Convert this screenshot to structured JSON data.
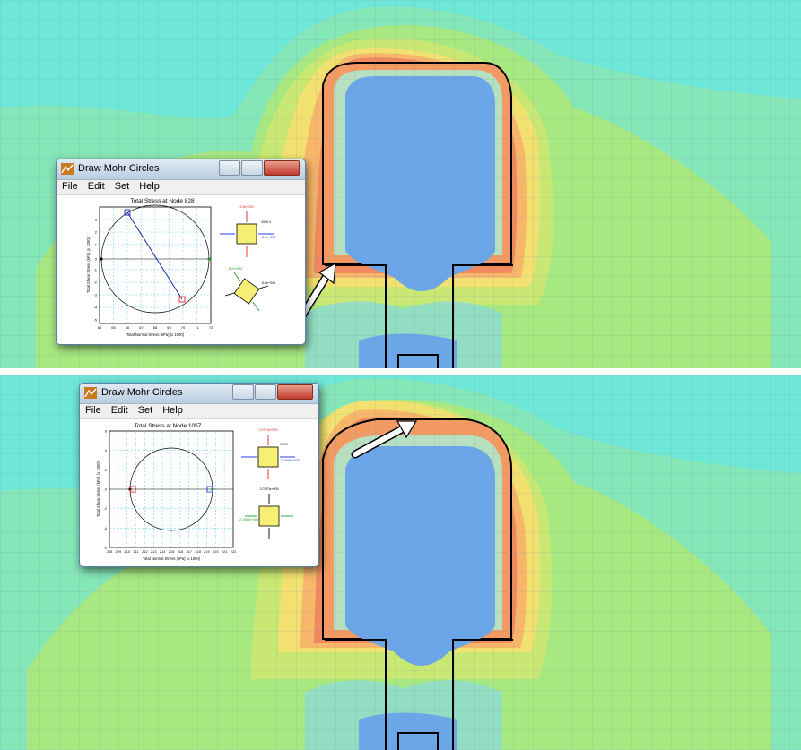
{
  "top": {
    "window": {
      "title": "Draw Mohr Circles",
      "menu": [
        "File",
        "Edit",
        "Set",
        "Help"
      ],
      "plot_title": "Total Stress at Node 828",
      "xlabel": "Total Normal Stress (kPa) (x 1000)",
      "ylabel": "Total Shear Stress (kPa) (x 1000)",
      "xticks": [
        "64",
        "65",
        "66",
        "67",
        "68",
        "69",
        "70",
        "71",
        "72"
      ],
      "yticks": [
        "3",
        "2",
        "1",
        "0",
        "-1",
        "-2",
        "-3",
        "-4",
        "-5"
      ],
      "element_labels": {
        "top_value": "6.5e+004",
        "side_value": "3000.4",
        "right_value": "6.9e+004",
        "rot_value_a": "6.7e+004",
        "rot_value_b": "6.6e+004"
      }
    }
  },
  "bottom": {
    "window": {
      "title": "Draw Mohr Circles",
      "menu": [
        "File",
        "Edit",
        "Set",
        "Help"
      ],
      "plot_title": "Total Stress at Node 1057",
      "xlabel": "Total Normal Stress (kPa) (x 1000)",
      "ylabel": "Total Shear Stress (kPa) (x 1000)",
      "xticks": [
        "208",
        "209",
        "210",
        "211",
        "212",
        "213",
        "214",
        "215",
        "216",
        "217",
        "218",
        "219",
        "220",
        "221",
        "222"
      ],
      "yticks": [
        "6",
        "4",
        "2",
        "0",
        "-2",
        "-4",
        "-6"
      ],
      "element_labels": {
        "top_value": "2.0770e+005",
        "side_value": "91.21",
        "right_value": "2.1986e+005",
        "rot_top_value": "2.0770e+005",
        "rot_left_value": "2.1986e+005"
      }
    }
  },
  "colors": {
    "background_contour": "#6ee6d8",
    "excavation": "#6aa6e8",
    "mohr_circle_top_line": "#2222aa",
    "stress_red": "#e0241b",
    "stress_blue": "#2b3ce0",
    "stress_green": "#1e9a2a",
    "element_fill": "#f5ef73"
  }
}
